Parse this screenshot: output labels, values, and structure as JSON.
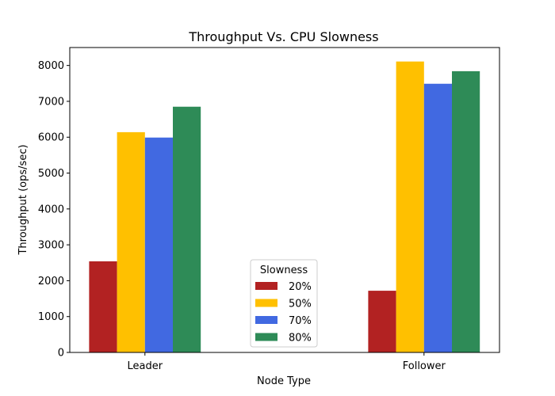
{
  "chart_data": {
    "type": "bar",
    "title": "Throughput Vs. CPU Slowness",
    "xlabel": "Node Type",
    "ylabel": "Throughput (ops/sec)",
    "categories": [
      "Leader",
      "Follower"
    ],
    "ylim": [
      0,
      8500
    ],
    "yticks": [
      0,
      1000,
      2000,
      3000,
      4000,
      5000,
      6000,
      7000,
      8000
    ],
    "grid": false,
    "legend": {
      "title": "Slowness",
      "placement": "bottom-center"
    },
    "series": [
      {
        "name": "20%",
        "color": "#b22222",
        "values": [
          2540,
          1720
        ]
      },
      {
        "name": "50%",
        "color": "#ffc000",
        "values": [
          6140,
          8110
        ]
      },
      {
        "name": "70%",
        "color": "#4169e1",
        "values": [
          5990,
          7490
        ]
      },
      {
        "name": "80%",
        "color": "#2e8b57",
        "values": [
          6850,
          7840
        ]
      }
    ]
  }
}
